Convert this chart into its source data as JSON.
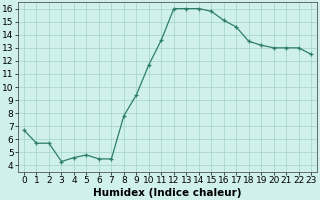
{
  "x": [
    0,
    1,
    2,
    3,
    4,
    5,
    6,
    7,
    8,
    9,
    10,
    11,
    12,
    13,
    14,
    15,
    16,
    17,
    18,
    19,
    20,
    21,
    22,
    23
  ],
  "y": [
    6.7,
    5.7,
    5.7,
    4.3,
    4.6,
    4.8,
    4.5,
    4.5,
    7.8,
    9.4,
    11.7,
    13.6,
    16.0,
    16.0,
    16.0,
    15.8,
    15.1,
    14.6,
    13.5,
    13.2,
    13.0,
    13.0,
    13.0,
    12.5
  ],
  "line_color": "#2e7d6e",
  "marker": "+",
  "marker_size": 3,
  "bg_color": "#cff0eb",
  "grid_color": "#aad8d0",
  "xlabel": "Humidex (Indice chaleur)",
  "ylabel": "",
  "xlim": [
    -0.5,
    23.5
  ],
  "ylim": [
    3.5,
    16.5
  ],
  "yticks": [
    4,
    5,
    6,
    7,
    8,
    9,
    10,
    11,
    12,
    13,
    14,
    15,
    16
  ],
  "xticks": [
    0,
    1,
    2,
    3,
    4,
    5,
    6,
    7,
    8,
    9,
    10,
    11,
    12,
    13,
    14,
    15,
    16,
    17,
    18,
    19,
    20,
    21,
    22,
    23
  ],
  "xtick_labels": [
    "0",
    "1",
    "2",
    "3",
    "4",
    "5",
    "6",
    "7",
    "8",
    "9",
    "10",
    "11",
    "12",
    "13",
    "14",
    "15",
    "16",
    "17",
    "18",
    "19",
    "20",
    "21",
    "22",
    "23"
  ],
  "tick_font_size": 6.5,
  "label_font_size": 7.5
}
